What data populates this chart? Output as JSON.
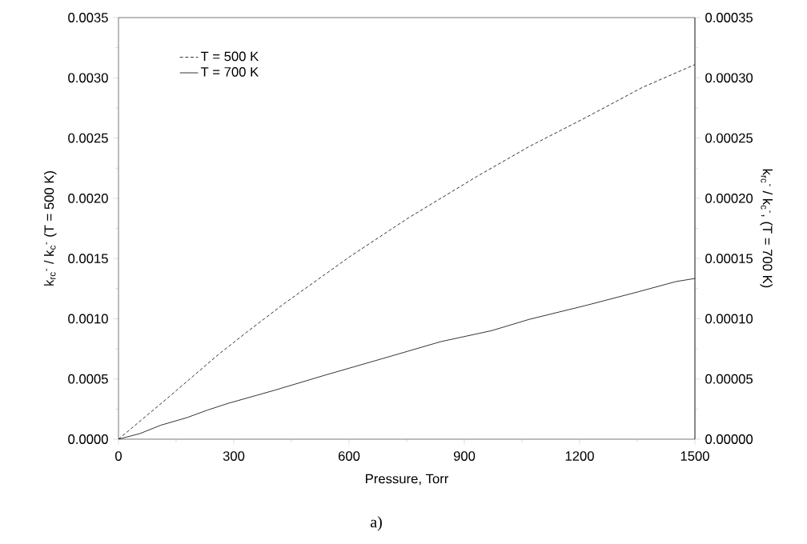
{
  "chart_data": {
    "type": "line",
    "xlabel": "Pressure, Torr",
    "ylabel": "k$_{rc}$$^{-}$ / k$_{c}$$^{-}$  (T = 500 K)",
    "y2label": "k$_{rc}$$^{-}$ / k$_{c}$$^{-}$, (T = 700 K)",
    "annotations": [
      "a)"
    ],
    "xlim": [
      0,
      1500
    ],
    "xticks": [
      0,
      300,
      600,
      900,
      1200,
      1500
    ],
    "ylim": [
      0,
      0.0035
    ],
    "yticks": [
      {
        "value": 0,
        "label": "0.0000"
      },
      {
        "value": 0.0005,
        "label": "0.0005"
      },
      {
        "value": 0.001,
        "label": "0.0010"
      },
      {
        "value": 0.0015,
        "label": "0.0015"
      },
      {
        "value": 0.002,
        "label": "0.0020"
      },
      {
        "value": 0.0025,
        "label": "0.0025"
      },
      {
        "value": 0.003,
        "label": "0.0030"
      },
      {
        "value": 0.0035,
        "label": "0.0035"
      }
    ],
    "y2lim": [
      0,
      0.00035
    ],
    "y2ticks": [
      {
        "value": 0,
        "label": "0.00000"
      },
      {
        "value": 5e-05,
        "label": "0.00005"
      },
      {
        "value": 0.0001,
        "label": "0.00010"
      },
      {
        "value": 0.00015,
        "label": "0.00015"
      },
      {
        "value": 0.0002,
        "label": "0.00020"
      },
      {
        "value": 0.00025,
        "label": "0.00025"
      },
      {
        "value": 0.0003,
        "label": "0.00030"
      },
      {
        "value": 0.00035,
        "label": "0.00035"
      }
    ],
    "legend": "top left",
    "grid": false,
    "marker": "none",
    "series": [
      {
        "name": "T = 500 K",
        "color": "#000000",
        "line_style": "dashed",
        "x": [
          0,
          129,
          261,
          340,
          433,
          604,
          756,
          932,
          1069,
          1216,
          1363,
          1500
        ],
        "values": [
          0,
          0.000345,
          0.000706,
          0.000904,
          0.00113,
          0.00152,
          0.00184,
          0.00218,
          0.00243,
          0.00267,
          0.00292,
          0.00311
        ]
      },
      {
        "name": "T = 700 K",
        "color": "#000000",
        "line_style": "solid",
        "axis": "y2",
        "x": [
          0,
          56,
          110,
          178,
          232,
          286,
          408,
          540,
          687,
          839,
          971,
          1069,
          1216,
          1353,
          1451,
          1500
        ],
        "values": [
          0,
          4.7e-06,
          1.16e-05,
          1.79e-05,
          2.42e-05,
          2.98e-05,
          4.08e-05,
          5.34e-05,
          6.69e-05,
          8.1e-05,
          9.01e-05,
          9.95e-05,
          0.000111,
          0.0001224,
          0.0001309,
          0.0001334
        ]
      }
    ]
  }
}
